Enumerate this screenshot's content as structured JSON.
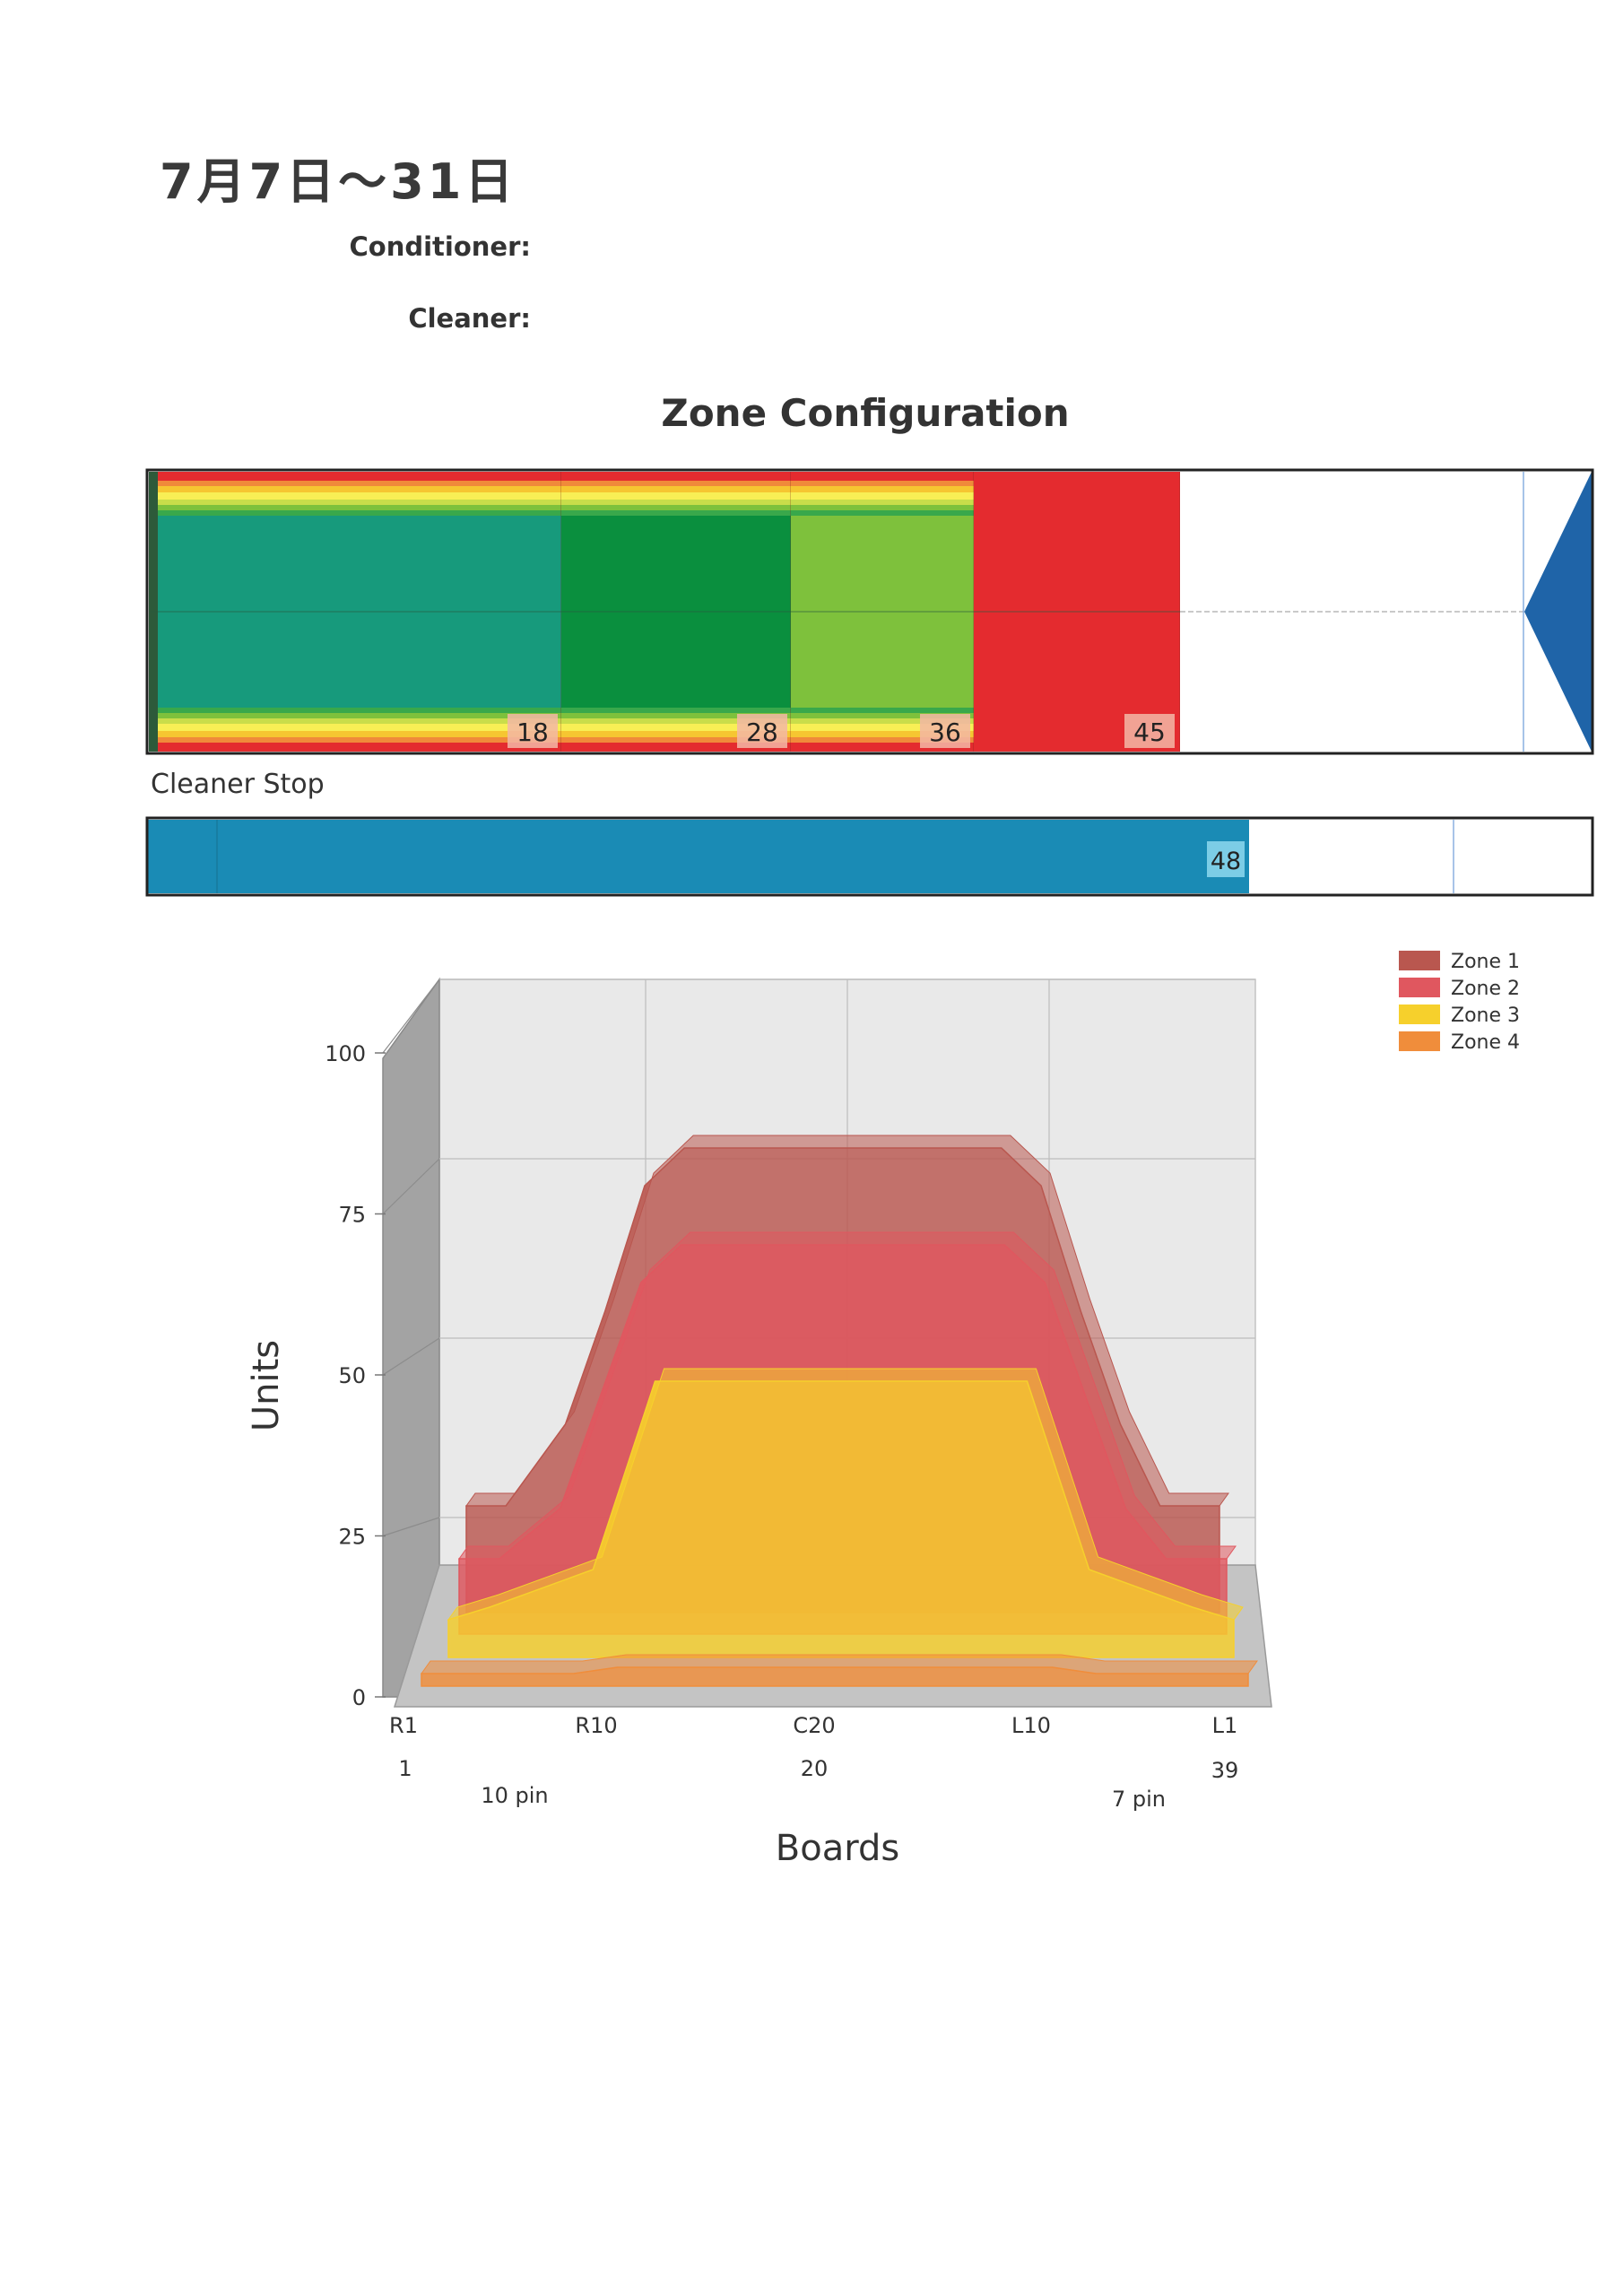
{
  "header": {
    "date_range": "7月7日～31日",
    "conditioner_label": "Conditioner:",
    "cleaner_label": "Cleaner:"
  },
  "zone_config": {
    "title": "Zone Configuration",
    "markers": [
      "18",
      "28",
      "36",
      "45"
    ],
    "colors": {
      "zone1": "#179a7c",
      "zone2": "#0a8f3e",
      "zone3": "#7ec13c",
      "zone4": "#e42b2f",
      "arrow": "#1f64a8"
    }
  },
  "cleaner_stop": {
    "label": "Cleaner Stop",
    "value": "48",
    "color": "#1a8bb5"
  },
  "chart_data": {
    "type": "area",
    "ylabel": "Units",
    "xlabel": "Boards",
    "yticks": [
      "0",
      "25",
      "50",
      "75",
      "100"
    ],
    "ylim": [
      0,
      100
    ],
    "x_tick_labels": [
      "R1",
      "R10",
      "C20",
      "L10",
      "L1"
    ],
    "x_board_numbers": [
      "1",
      "20",
      "39"
    ],
    "pin_labels": [
      "10 pin",
      "7 pin"
    ],
    "legend_position": "top-right",
    "series": [
      {
        "name": "Zone 1",
        "color": "#b9574f",
        "board_x": [
          1,
          3,
          6,
          8,
          10,
          12,
          28,
          30,
          32,
          34,
          36,
          39
        ],
        "values": [
          17,
          17,
          30,
          48,
          68,
          74,
          74,
          68,
          48,
          30,
          17,
          17
        ]
      },
      {
        "name": "Zone 2",
        "color": "#e0575f",
        "board_x": [
          1,
          3,
          6,
          8,
          10,
          12,
          28,
          30,
          32,
          34,
          36,
          39
        ],
        "values": [
          12,
          12,
          20,
          38,
          56,
          62,
          62,
          56,
          38,
          20,
          12,
          12
        ]
      },
      {
        "name": "Zone 3",
        "color": "#f6d02c",
        "board_x": [
          1,
          3,
          8,
          11,
          29,
          32,
          37,
          39
        ],
        "values": [
          6,
          8,
          14,
          44,
          44,
          14,
          8,
          6
        ]
      },
      {
        "name": "Zone 4",
        "color": "#f08d3b",
        "board_x": [
          1,
          8,
          10,
          30,
          32,
          39
        ],
        "values": [
          2,
          2,
          3,
          3,
          2,
          2
        ]
      }
    ]
  }
}
